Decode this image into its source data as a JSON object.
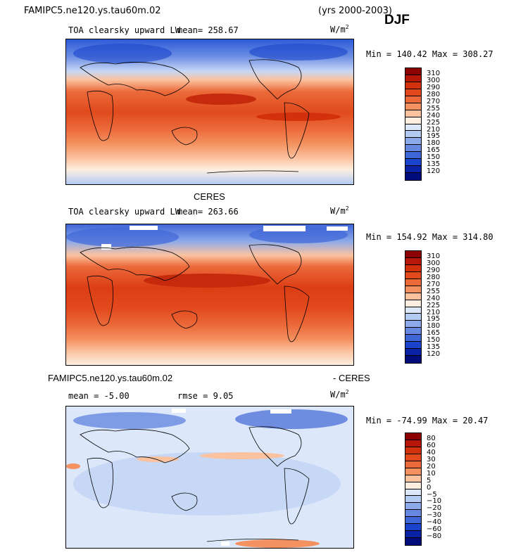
{
  "header": {
    "model_title": "FAMIPC5.ne120.ys.tau60m.02",
    "years": "(yrs 2000-2003)",
    "season": "DJF"
  },
  "panels": [
    {
      "label": "TOA clearsky upward LW",
      "mean_text": "mean=  258.67",
      "units_base": "W/m",
      "units_exp": "2",
      "minmax": "Min = 140.42 Max = 308.27",
      "levels": [
        "310",
        "300",
        "290",
        "280",
        "270",
        "255",
        "240",
        "225",
        "210",
        "195",
        "180",
        "165",
        "150",
        "135",
        "120"
      ],
      "colors": [
        "#8c0000",
        "#b71708",
        "#d3300c",
        "#e24a1d",
        "#ec6a3a",
        "#f49160",
        "#fbc29f",
        "#fdeee0",
        "#dce8f9",
        "#b3cbf3",
        "#8caaea",
        "#6688e0",
        "#3f66d7",
        "#1b44cc",
        "#0a22a6",
        "#000c7a"
      ]
    },
    {
      "heading": "CERES",
      "label": "TOA clearsky upward LW",
      "mean_text": "mean=  263.66",
      "units_base": "W/m",
      "units_exp": "2",
      "minmax": "Min = 154.92 Max = 314.80",
      "levels": [
        "310",
        "300",
        "290",
        "280",
        "270",
        "255",
        "240",
        "225",
        "210",
        "195",
        "180",
        "165",
        "150",
        "135",
        "120"
      ],
      "colors": [
        "#8c0000",
        "#b71708",
        "#d3300c",
        "#e24a1d",
        "#ec6a3a",
        "#f49160",
        "#fbc29f",
        "#fdeee0",
        "#dce8f9",
        "#b3cbf3",
        "#8caaea",
        "#6688e0",
        "#3f66d7",
        "#1b44cc",
        "#0a22a6",
        "#000c7a"
      ]
    },
    {
      "heading_left": "FAMIPC5.ne120.ys.tau60m.02",
      "heading_right": "- CERES",
      "mean_text": "mean =   -5.00",
      "rmse_text": "rmse =    9.05",
      "units_base": "W/m",
      "units_exp": "2",
      "minmax": "Min = -74.99 Max =  20.47",
      "levels": [
        "80",
        "60",
        "40",
        "30",
        "20",
        "10",
        "5",
        "0",
        "−5",
        "−10",
        "−20",
        "−30",
        "−40",
        "−60",
        "−80"
      ],
      "colors": [
        "#8c0000",
        "#b71708",
        "#d3300c",
        "#e24a1d",
        "#ec6a3a",
        "#f49160",
        "#fbc29f",
        "#fdeee0",
        "#dce8f9",
        "#b3cbf3",
        "#8caaea",
        "#6688e0",
        "#3f66d7",
        "#1b44cc",
        "#0a22a6",
        "#000c7a"
      ]
    }
  ],
  "chart_data": [
    {
      "type": "heatmap",
      "title": "TOA clearsky upward LW",
      "model": "FAMIPC5.ne120.ys.tau60m.02",
      "season": "DJF",
      "mean": 258.67,
      "min": 140.42,
      "max": 308.27,
      "units": "W/m2",
      "colorbar_levels": [
        120,
        135,
        150,
        165,
        180,
        195,
        210,
        225,
        240,
        255,
        270,
        280,
        290,
        300,
        310
      ]
    },
    {
      "type": "heatmap",
      "title": "TOA clearsky upward LW",
      "model": "CERES",
      "season": "DJF",
      "mean": 263.66,
      "min": 154.92,
      "max": 314.8,
      "units": "W/m2",
      "colorbar_levels": [
        120,
        135,
        150,
        165,
        180,
        195,
        210,
        225,
        240,
        255,
        270,
        280,
        290,
        300,
        310
      ]
    },
    {
      "type": "heatmap",
      "title": "FAMIPC5.ne120.ys.tau60m.02 - CERES",
      "season": "DJF",
      "mean": -5.0,
      "rmse": 9.05,
      "min": -74.99,
      "max": 20.47,
      "units": "W/m2",
      "colorbar_levels": [
        -80,
        -60,
        -40,
        -30,
        -20,
        -10,
        -5,
        0,
        5,
        10,
        20,
        30,
        40,
        60,
        80
      ]
    }
  ]
}
